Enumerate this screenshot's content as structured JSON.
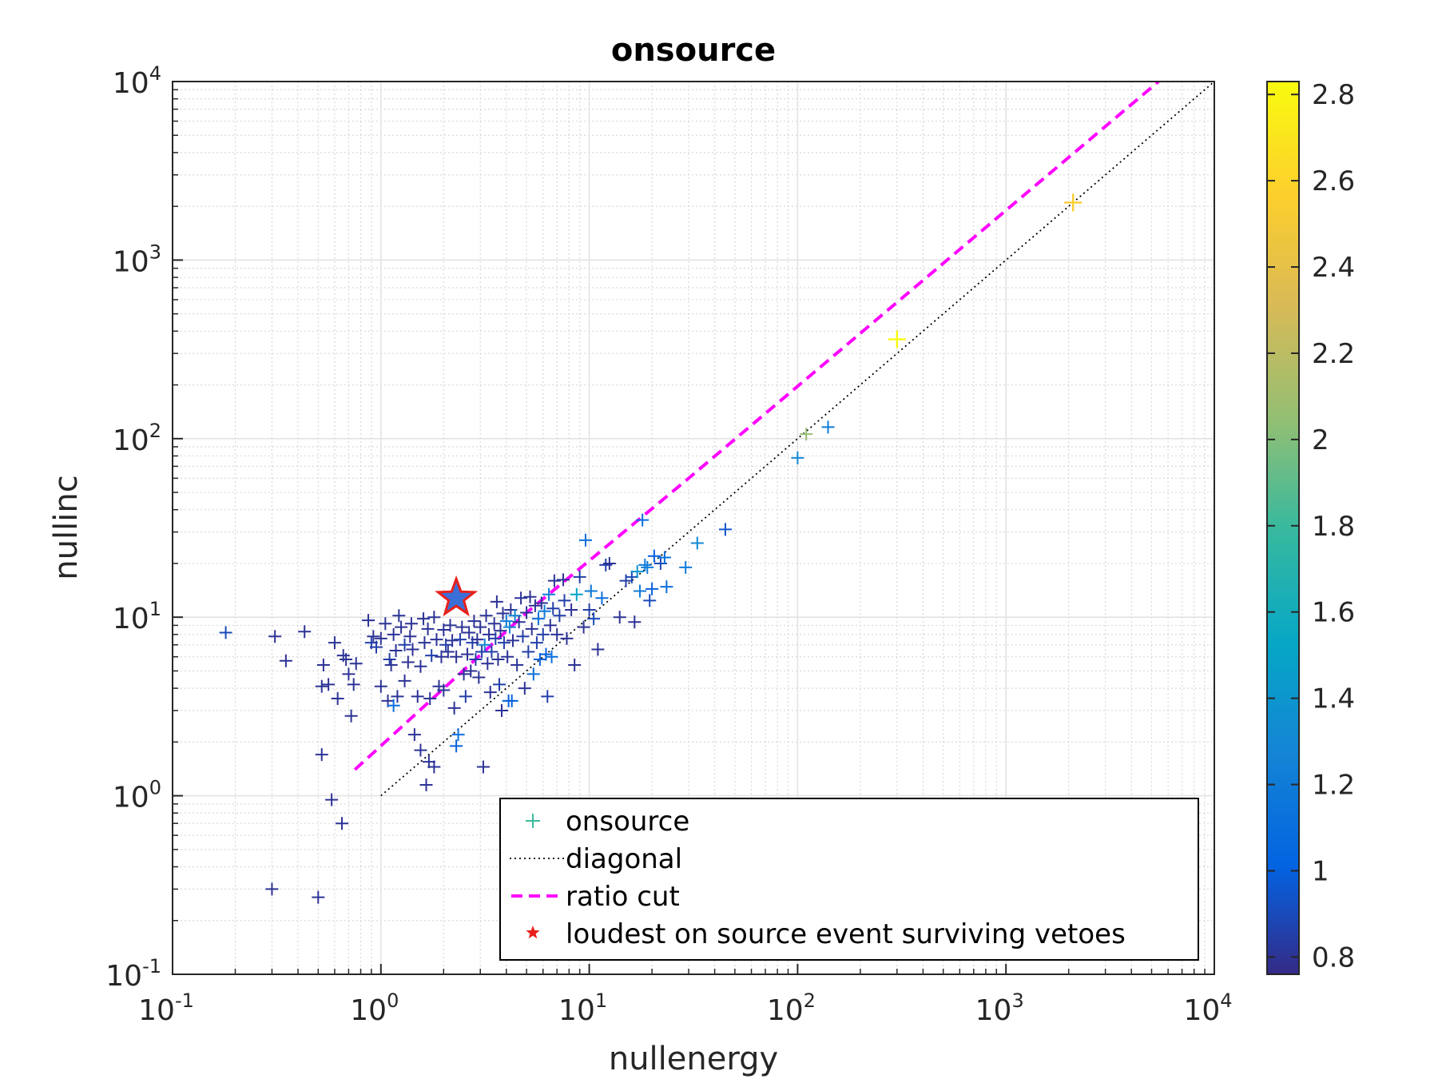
{
  "chart_data": {
    "type": "scatter",
    "title": "onsource",
    "xlabel": "nullenergy",
    "ylabel": "nullinc",
    "xscale": "log",
    "yscale": "log",
    "xlim": [
      0.1,
      10000
    ],
    "ylim": [
      0.1,
      10000
    ],
    "x_tick_labels": [
      {
        "base": "10",
        "exp": "-1"
      },
      {
        "base": "10",
        "exp": "0"
      },
      {
        "base": "10",
        "exp": "1"
      },
      {
        "base": "10",
        "exp": "2"
      },
      {
        "base": "10",
        "exp": "3"
      },
      {
        "base": "10",
        "exp": "4"
      }
    ],
    "y_tick_labels": [
      {
        "base": "10",
        "exp": "-1"
      },
      {
        "base": "10",
        "exp": "0"
      },
      {
        "base": "10",
        "exp": "1"
      },
      {
        "base": "10",
        "exp": "2"
      },
      {
        "base": "10",
        "exp": "3"
      },
      {
        "base": "10",
        "exp": "4"
      }
    ],
    "grid": true,
    "minor_grid": true,
    "colorbar": {
      "range": [
        0.76,
        2.83
      ],
      "ticks": [
        "0.8",
        "1",
        "1.2",
        "1.4",
        "1.6",
        "1.8",
        "2",
        "2.2",
        "2.4",
        "2.6",
        "2.8"
      ],
      "colormap": "parula"
    },
    "legend": {
      "placement": "bottom-right",
      "entries": [
        "onsource",
        "diagonal",
        "ratio cut",
        "loudest on source event surviving vetoes"
      ]
    },
    "series": [
      {
        "name": "onsource",
        "marker": "plus",
        "points": [
          [
            0.18,
            8.2,
            0.9
          ],
          [
            0.3,
            0.3,
            0.8
          ],
          [
            0.31,
            7.8,
            0.8
          ],
          [
            0.35,
            5.7,
            0.8
          ],
          [
            0.43,
            8.3,
            0.8
          ],
          [
            0.5,
            0.27,
            0.8
          ],
          [
            0.52,
            1.7,
            0.8
          ],
          [
            0.52,
            4.1,
            0.8
          ],
          [
            0.53,
            5.4,
            0.8
          ],
          [
            0.56,
            4.2,
            0.8
          ],
          [
            0.58,
            0.95,
            0.8
          ],
          [
            0.6,
            7.2,
            0.8
          ],
          [
            0.62,
            3.5,
            0.8
          ],
          [
            0.65,
            0.7,
            0.8
          ],
          [
            0.66,
            6.1,
            0.8
          ],
          [
            0.68,
            5.8,
            0.8
          ],
          [
            0.7,
            4.8,
            0.8
          ],
          [
            0.72,
            2.8,
            0.8
          ],
          [
            0.74,
            4.2,
            0.8
          ],
          [
            0.76,
            5.5,
            0.8
          ],
          [
            0.87,
            9.6,
            0.8
          ],
          [
            0.9,
            7.2,
            0.85
          ],
          [
            0.92,
            7.8,
            0.8
          ],
          [
            0.95,
            6.8,
            0.85
          ],
          [
            1.0,
            4.1,
            0.8
          ],
          [
            1.0,
            7.6,
            0.8
          ],
          [
            1.05,
            9.2,
            0.8
          ],
          [
            1.08,
            3.4,
            0.8
          ],
          [
            1.1,
            5.8,
            0.85
          ],
          [
            1.12,
            5.4,
            0.8
          ],
          [
            1.15,
            3.2,
            1.1
          ],
          [
            1.15,
            8.0,
            0.8
          ],
          [
            1.18,
            6.5,
            0.8
          ],
          [
            1.2,
            3.6,
            0.8
          ],
          [
            1.22,
            10.2,
            0.8
          ],
          [
            1.25,
            8.8,
            0.8
          ],
          [
            1.3,
            7.0,
            0.85
          ],
          [
            1.3,
            4.4,
            0.8
          ],
          [
            1.35,
            5.6,
            0.8
          ],
          [
            1.38,
            7.8,
            0.8
          ],
          [
            1.4,
            9.2,
            0.8
          ],
          [
            1.42,
            6.6,
            0.8
          ],
          [
            1.45,
            2.2,
            0.8
          ],
          [
            1.5,
            3.6,
            0.8
          ],
          [
            1.55,
            5.3,
            0.8
          ],
          [
            1.55,
            1.8,
            0.8
          ],
          [
            1.6,
            9.8,
            0.8
          ],
          [
            1.62,
            7.2,
            0.8
          ],
          [
            1.65,
            1.15,
            0.8
          ],
          [
            1.68,
            8.6,
            0.8
          ],
          [
            1.7,
            1.55,
            0.8
          ],
          [
            1.72,
            3.5,
            0.8
          ],
          [
            1.75,
            6.1,
            0.85
          ],
          [
            1.8,
            10.0,
            0.8
          ],
          [
            1.8,
            1.45,
            0.8
          ],
          [
            1.85,
            7.5,
            0.8
          ],
          [
            1.9,
            4.1,
            0.8
          ],
          [
            1.95,
            6.0,
            0.8
          ],
          [
            2.0,
            8.5,
            0.8
          ],
          [
            2.0,
            3.9,
            0.8
          ],
          [
            2.05,
            7.0,
            0.85
          ],
          [
            2.1,
            6.4,
            0.8
          ],
          [
            2.15,
            9.0,
            0.8
          ],
          [
            2.2,
            7.4,
            0.8
          ],
          [
            2.25,
            3.1,
            0.8
          ],
          [
            2.3,
            1.9,
            1.0
          ],
          [
            2.3,
            6.0,
            0.8
          ],
          [
            2.35,
            2.2,
            1.1
          ],
          [
            2.4,
            7.5,
            0.85
          ],
          [
            2.45,
            8.8,
            0.8
          ],
          [
            2.5,
            4.8,
            0.8
          ],
          [
            2.55,
            3.6,
            0.85
          ],
          [
            2.6,
            6.2,
            0.8
          ],
          [
            2.65,
            8.2,
            0.8
          ],
          [
            2.7,
            5.0,
            0.8
          ],
          [
            2.75,
            7.2,
            0.85
          ],
          [
            2.8,
            9.5,
            0.8
          ],
          [
            2.85,
            5.8,
            0.85
          ],
          [
            2.9,
            7.5,
            0.8
          ],
          [
            2.95,
            4.6,
            0.8
          ],
          [
            3.0,
            8.8,
            0.8
          ],
          [
            3.05,
            6.4,
            0.85
          ],
          [
            3.1,
            1.45,
            0.8
          ],
          [
            3.15,
            7.0,
            1.3
          ],
          [
            3.2,
            10.2,
            0.8
          ],
          [
            3.25,
            5.5,
            0.8
          ],
          [
            3.3,
            8.0,
            0.8
          ],
          [
            3.35,
            3.8,
            0.8
          ],
          [
            3.4,
            6.4,
            0.85
          ],
          [
            3.5,
            9.2,
            0.8
          ],
          [
            3.55,
            7.6,
            0.85
          ],
          [
            3.6,
            12.2,
            0.8
          ],
          [
            3.65,
            5.8,
            0.8
          ],
          [
            3.7,
            4.2,
            0.85
          ],
          [
            3.75,
            8.4,
            0.8
          ],
          [
            3.8,
            3.0,
            0.8
          ],
          [
            3.85,
            10.5,
            0.8
          ],
          [
            3.9,
            7.2,
            0.85
          ],
          [
            4.0,
            9.5,
            1.2
          ],
          [
            4.05,
            6.0,
            0.8
          ],
          [
            4.1,
            3.4,
            1.0
          ],
          [
            4.15,
            8.8,
            1.3
          ],
          [
            4.2,
            11.0,
            0.8
          ],
          [
            4.25,
            3.4,
            1.0
          ],
          [
            4.3,
            7.4,
            0.8
          ],
          [
            4.4,
            10.2,
            1.3
          ],
          [
            4.5,
            5.4,
            0.8
          ],
          [
            4.6,
            9.4,
            0.8
          ],
          [
            4.7,
            12.8,
            0.8
          ],
          [
            4.8,
            7.8,
            0.85
          ],
          [
            4.9,
            4.0,
            0.8
          ],
          [
            5.0,
            10.6,
            0.8
          ],
          [
            5.1,
            6.4,
            0.85
          ],
          [
            5.2,
            13.0,
            0.8
          ],
          [
            5.3,
            8.6,
            0.8
          ],
          [
            5.4,
            4.8,
            1.1
          ],
          [
            5.5,
            11.6,
            0.8
          ],
          [
            5.6,
            7.2,
            0.85
          ],
          [
            5.7,
            9.8,
            1.1
          ],
          [
            5.8,
            5.8,
            1.0
          ],
          [
            5.9,
            12.0,
            0.8
          ],
          [
            6.0,
            8.0,
            0.85
          ],
          [
            6.1,
            10.8,
            1.2
          ],
          [
            6.2,
            6.2,
            1.0
          ],
          [
            6.3,
            3.6,
            0.85
          ],
          [
            6.4,
            13.4,
            1.2
          ],
          [
            6.5,
            9.0,
            0.8
          ],
          [
            6.6,
            6.0,
            1.1
          ],
          [
            6.7,
            11.2,
            0.85
          ],
          [
            6.8,
            16.0,
            0.8
          ],
          [
            7.0,
            8.0,
            0.8
          ],
          [
            7.2,
            10.2,
            0.85
          ],
          [
            7.5,
            16.2,
            0.8
          ],
          [
            7.6,
            12.4,
            0.85
          ],
          [
            7.8,
            7.6,
            0.8
          ],
          [
            8.2,
            11.0,
            0.8
          ],
          [
            8.5,
            5.4,
            0.8
          ],
          [
            8.7,
            13.4,
            1.5
          ],
          [
            9.0,
            16.8,
            0.85
          ],
          [
            9.4,
            8.8,
            0.8
          ],
          [
            9.6,
            27.0,
            1.1
          ],
          [
            10.0,
            11.0,
            0.85
          ],
          [
            10.2,
            14.0,
            1.2
          ],
          [
            10.5,
            9.8,
            0.9
          ],
          [
            11.0,
            6.6,
            0.8
          ],
          [
            11.5,
            12.8,
            1.1
          ],
          [
            12.0,
            19.6,
            0.85
          ],
          [
            12.5,
            20.0,
            0.8
          ],
          [
            14.0,
            10.0,
            0.8
          ],
          [
            15.0,
            16.0,
            0.85
          ],
          [
            16.0,
            16.8,
            0.9
          ],
          [
            16.5,
            9.4,
            0.8
          ],
          [
            17.0,
            18.0,
            1.4
          ],
          [
            17.5,
            14.0,
            1.2
          ],
          [
            18.0,
            35.0,
            1.1
          ],
          [
            18.5,
            19.6,
            1.2
          ],
          [
            19.0,
            19.0,
            1.2
          ],
          [
            19.5,
            12.4,
            0.9
          ],
          [
            20.0,
            14.4,
            1.0
          ],
          [
            20.5,
            22.0,
            1.0
          ],
          [
            22.0,
            20.0,
            0.9
          ],
          [
            23.0,
            21.6,
            1.1
          ],
          [
            23.5,
            14.8,
            1.1
          ],
          [
            29.0,
            19.0,
            1.2
          ],
          [
            33.0,
            26.0,
            1.3
          ],
          [
            45.0,
            31.0,
            0.95
          ],
          [
            100.0,
            78.0,
            1.3
          ],
          [
            110.0,
            106.0,
            2.05
          ],
          [
            140.0,
            116.0,
            1.2
          ],
          [
            300.0,
            360.0,
            2.82
          ],
          [
            2100.0,
            2100.0,
            2.55
          ]
        ]
      },
      {
        "name": "diagonal",
        "line_style": "dotted",
        "color": "#000000",
        "x": [
          1,
          10000
        ],
        "y": [
          1,
          10000
        ]
      },
      {
        "name": "ratio cut",
        "line_style": "dashed",
        "color": "#ff00ff",
        "x": [
          0.75,
          5.0,
          30.0,
          5400.0
        ],
        "y": [
          1.4,
          10.6,
          60.0,
          10000.0
        ]
      },
      {
        "name": "loudest on source event surviving vetoes",
        "marker": "star",
        "color": "#3b6fd8",
        "edge_color": "#e8211b",
        "points": [
          [
            2.3,
            12.8
          ]
        ]
      }
    ]
  }
}
